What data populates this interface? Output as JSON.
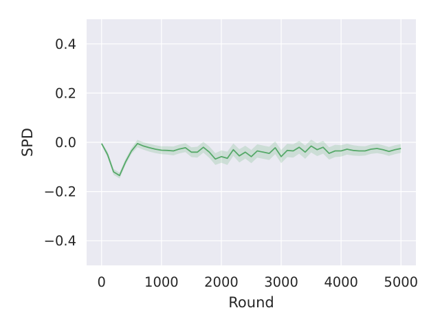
{
  "chart_data": {
    "type": "line",
    "title": "",
    "xlabel": "Round",
    "ylabel": "SPD",
    "xlim": [
      -250,
      5250
    ],
    "ylim": [
      -0.5,
      0.5
    ],
    "xticks": [
      0,
      1000,
      2000,
      3000,
      4000,
      5000
    ],
    "xtick_labels": [
      "0",
      "1000",
      "2000",
      "3000",
      "4000",
      "5000"
    ],
    "yticks": [
      -0.4,
      -0.2,
      0.0,
      0.2,
      0.4
    ],
    "ytick_labels": [
      "−0.4",
      "−0.2",
      "0.0",
      "0.2",
      "0.4"
    ],
    "grid": true,
    "style": "darkgrid",
    "colors": {
      "background": "#eaeaf2",
      "grid": "#ffffff",
      "line": "#55a868",
      "band": "#55a868"
    },
    "series": [
      {
        "x": [
          0,
          100,
          200,
          300,
          400,
          500,
          600,
          700,
          800,
          900,
          1000,
          1100,
          1200,
          1300,
          1400,
          1500,
          1600,
          1700,
          1800,
          1900,
          2000,
          2100,
          2200,
          2300,
          2400,
          2500,
          2600,
          2700,
          2800,
          2900,
          3000,
          3100,
          3200,
          3300,
          3400,
          3500,
          3600,
          3700,
          3800,
          3900,
          4000,
          4100,
          4200,
          4300,
          4400,
          4500,
          4600,
          4700,
          4800,
          4900,
          5000
        ],
        "y": [
          -0.005,
          -0.05,
          -0.12,
          -0.135,
          -0.08,
          -0.035,
          -0.005,
          -0.015,
          -0.022,
          -0.028,
          -0.032,
          -0.033,
          -0.035,
          -0.027,
          -0.022,
          -0.04,
          -0.04,
          -0.02,
          -0.04,
          -0.068,
          -0.058,
          -0.065,
          -0.03,
          -0.055,
          -0.04,
          -0.058,
          -0.035,
          -0.04,
          -0.045,
          -0.022,
          -0.058,
          -0.033,
          -0.035,
          -0.02,
          -0.04,
          -0.015,
          -0.03,
          -0.02,
          -0.045,
          -0.035,
          -0.035,
          -0.028,
          -0.033,
          -0.035,
          -0.035,
          -0.028,
          -0.025,
          -0.03,
          -0.037,
          -0.03,
          -0.025
        ],
        "lower": [
          -0.01,
          -0.062,
          -0.132,
          -0.147,
          -0.092,
          -0.047,
          -0.02,
          -0.03,
          -0.038,
          -0.044,
          -0.048,
          -0.05,
          -0.053,
          -0.045,
          -0.04,
          -0.06,
          -0.062,
          -0.042,
          -0.063,
          -0.092,
          -0.083,
          -0.092,
          -0.055,
          -0.082,
          -0.066,
          -0.085,
          -0.062,
          -0.067,
          -0.072,
          -0.048,
          -0.085,
          -0.06,
          -0.062,
          -0.046,
          -0.067,
          -0.041,
          -0.056,
          -0.046,
          -0.07,
          -0.06,
          -0.058,
          -0.05,
          -0.054,
          -0.055,
          -0.054,
          -0.047,
          -0.044,
          -0.048,
          -0.055,
          -0.048,
          -0.043
        ],
        "upper": [
          0.0,
          -0.038,
          -0.108,
          -0.123,
          -0.068,
          -0.023,
          0.01,
          0.0,
          -0.006,
          -0.012,
          -0.016,
          -0.016,
          -0.017,
          -0.009,
          -0.004,
          -0.02,
          -0.018,
          0.002,
          -0.017,
          -0.044,
          -0.033,
          -0.038,
          -0.005,
          -0.028,
          -0.014,
          -0.031,
          -0.008,
          -0.013,
          -0.018,
          0.004,
          -0.031,
          -0.006,
          -0.008,
          0.006,
          -0.013,
          0.011,
          -0.004,
          0.006,
          -0.02,
          -0.01,
          -0.012,
          -0.006,
          -0.012,
          -0.015,
          -0.016,
          -0.009,
          -0.006,
          -0.012,
          -0.019,
          -0.012,
          -0.007
        ]
      }
    ]
  }
}
